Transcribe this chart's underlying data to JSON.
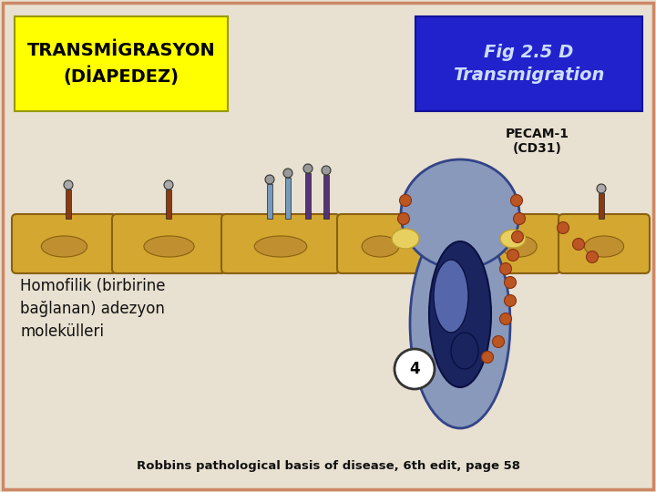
{
  "bg_color": "#e8e0d0",
  "border_color": "#cc8866",
  "title_box_color": "#ffff00",
  "title_text": "TRANSMİGRASYON\n(DİAPEDEZ)",
  "title_text_color": "#000000",
  "fig_box_color": "#2222cc",
  "fig_text": "Fig 2.5 D\nTransmigration",
  "fig_text_color": "#ccddff",
  "pecam_text": "PECAM-1\n(CD31)",
  "pecam_text_color": "#111111",
  "homo_text": "Homofilik (birbirine\nbağlanan) adezyon\nmolekülleri",
  "homo_text_color": "#111111",
  "bottom_text": "Robbins pathological basis of disease, 6th edit, page 58",
  "bottom_text_color": "#111111",
  "cell_fill": "#d4a830",
  "cell_edge": "#8a6010",
  "nucleus_fill": "#c09030",
  "leuko_body_fill": "#8899bb",
  "leuko_body_edge": "#334488",
  "leuko_nucleus_fill": "#1a2560",
  "leuko_nucleus_edge": "#0a1040",
  "leuko_inner_fill": "#5566aa",
  "dot_fill": "#bb5522",
  "dot_edge": "#883311"
}
